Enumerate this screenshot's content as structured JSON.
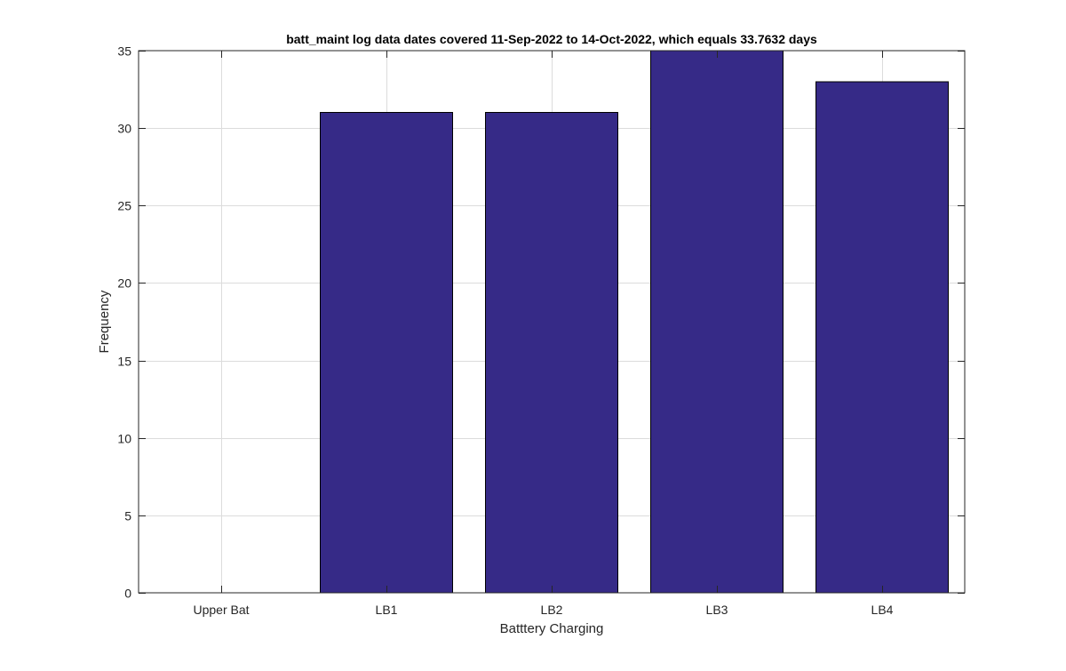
{
  "chart_data": {
    "type": "bar",
    "title": "batt_maint log data  dates covered 11-Sep-2022 to 14-Oct-2022, which equals 33.7632 days",
    "xlabel": "Batttery Charging",
    "ylabel": "Frequency",
    "categories": [
      "Upper Bat",
      "LB1",
      "LB2",
      "LB3",
      "LB4"
    ],
    "values": [
      0,
      31,
      31,
      35,
      33
    ],
    "ylim": [
      0,
      35
    ],
    "yticks": [
      0,
      5,
      10,
      15,
      20,
      25,
      30,
      35
    ],
    "grid": true,
    "legend": "none",
    "colors": {
      "bar_fill": "#362a87",
      "bar_stroke": "#000000",
      "grid": "#dcdcdc",
      "axis": "#262626",
      "text": "#262626"
    }
  }
}
